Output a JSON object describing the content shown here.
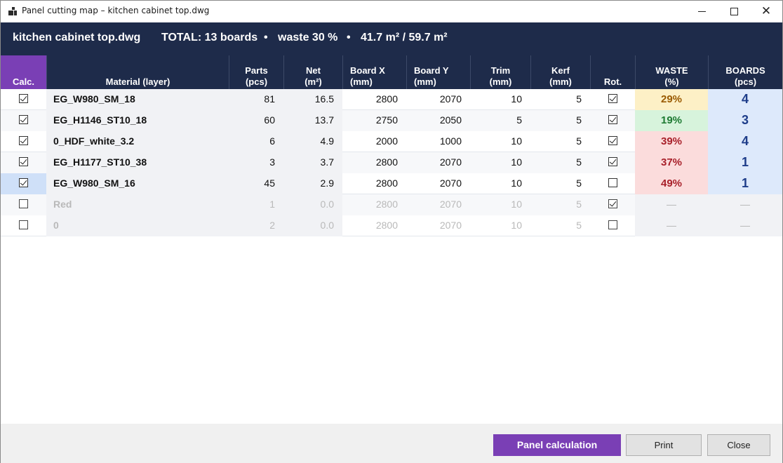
{
  "window": {
    "title": "Panel cutting map  –  kitchen cabinet top.dwg",
    "controls": {
      "minimize": "minimize",
      "maximize": "maximize",
      "close": "✕"
    }
  },
  "summary": {
    "file": "kitchen cabinet top.dwg",
    "total": "TOTAL: 13 boards",
    "separator": "•",
    "waste": "waste 30 %",
    "area": "41.7 m² / 59.7 m²"
  },
  "table": {
    "headers": {
      "calc": "Calc.",
      "material": "Material (layer)",
      "parts": [
        "Parts",
        "(pcs)"
      ],
      "net": [
        "Net",
        "(m²)"
      ],
      "board_x": [
        "Board X",
        "(mm)"
      ],
      "board_y": [
        "Board Y",
        "(mm)"
      ],
      "trim": [
        "Trim",
        "(mm)"
      ],
      "kerf": [
        "Kerf",
        "(mm)"
      ],
      "rot": "Rot.",
      "waste": [
        "WASTE",
        "(%)"
      ],
      "boards": [
        "BOARDS",
        "(pcs)"
      ]
    },
    "rows": [
      {
        "calc": true,
        "material": "EG_W980_SM_18",
        "parts": "81",
        "net": "16.5",
        "board_x": "2800",
        "board_y": "2070",
        "trim": "10",
        "kerf": "5",
        "rot": true,
        "waste": "29%",
        "waste_level": "amber",
        "boards": "4",
        "enabled": true
      },
      {
        "calc": true,
        "material": "EG_H1146_ST10_18",
        "parts": "60",
        "net": "13.7",
        "board_x": "2750",
        "board_y": "2050",
        "trim": "5",
        "kerf": "5",
        "rot": true,
        "waste": "19%",
        "waste_level": "green",
        "boards": "3",
        "enabled": true
      },
      {
        "calc": true,
        "material": "0_HDF_white_3.2",
        "parts": "6",
        "net": "4.9",
        "board_x": "2000",
        "board_y": "1000",
        "trim": "10",
        "kerf": "5",
        "rot": true,
        "waste": "39%",
        "waste_level": "red",
        "boards": "4",
        "enabled": true
      },
      {
        "calc": true,
        "material": "EG_H1177_ST10_38",
        "parts": "3",
        "net": "3.7",
        "board_x": "2800",
        "board_y": "2070",
        "trim": "10",
        "kerf": "5",
        "rot": true,
        "waste": "37%",
        "waste_level": "red",
        "boards": "1",
        "enabled": true
      },
      {
        "calc": true,
        "material": "EG_W980_SM_16",
        "parts": "45",
        "net": "2.9",
        "board_x": "2800",
        "board_y": "2070",
        "trim": "10",
        "kerf": "5",
        "rot": false,
        "waste": "49%",
        "waste_level": "red",
        "boards": "1",
        "enabled": true
      },
      {
        "calc": false,
        "material": "Red",
        "parts": "1",
        "net": "0.0",
        "board_x": "2800",
        "board_y": "2070",
        "trim": "10",
        "kerf": "5",
        "rot": true,
        "waste": "—",
        "waste_level": "none",
        "boards": "—",
        "enabled": false
      },
      {
        "calc": false,
        "material": "0",
        "parts": "2",
        "net": "0.0",
        "board_x": "2800",
        "board_y": "2070",
        "trim": "10",
        "kerf": "5",
        "rot": false,
        "waste": "—",
        "waste_level": "none",
        "boards": "—",
        "enabled": false
      }
    ]
  },
  "colors": {
    "header_bg": "#1e2b4a",
    "accent_purple": "#7a3fb5",
    "waste_amber": "#fdf0c6",
    "waste_green": "#d7f3dc",
    "waste_red": "#fbdcdc",
    "boards_bg": "#dde9fb"
  },
  "footer": {
    "calculate": "Panel calculation",
    "print": "Print",
    "close": "Close"
  }
}
